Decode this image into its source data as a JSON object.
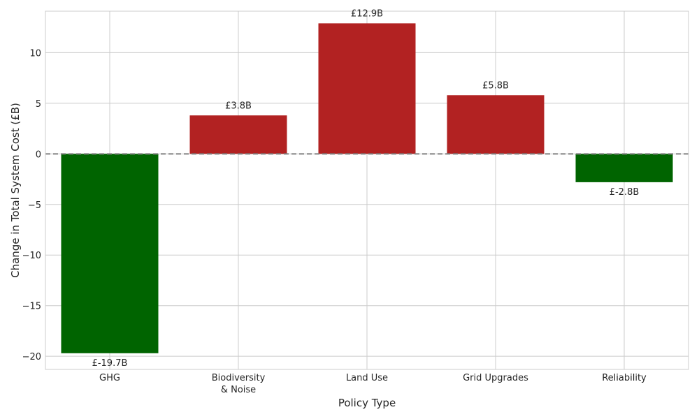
{
  "chart_data": {
    "type": "bar",
    "categories": [
      [
        "GHG"
      ],
      [
        "Biodiversity",
        "& Noise"
      ],
      [
        "Land Use"
      ],
      [
        "Grid Upgrades"
      ],
      [
        "Reliability"
      ]
    ],
    "values": [
      -19.7,
      3.8,
      12.9,
      5.8,
      -2.8
    ],
    "data_labels": [
      "£-19.7B",
      "£3.8B",
      "£12.9B",
      "£5.8B",
      "£-2.8B"
    ],
    "xlabel": "Policy Type",
    "ylabel": "Change in Total System Cost (£B)",
    "ylim": [
      -21.3,
      14.1
    ],
    "yticks": [
      10,
      5,
      0,
      -5,
      -10,
      -15,
      -20
    ],
    "ytick_labels": [
      "10",
      "5",
      "0",
      "−5",
      "−10",
      "−15",
      "−20"
    ],
    "grid": true,
    "zero_line": "dashed",
    "colors": {
      "negative": "#006400",
      "positive": "#b22222",
      "zero_line": "#808080",
      "grid": "#cccccc",
      "frame": "#cccccc"
    }
  }
}
